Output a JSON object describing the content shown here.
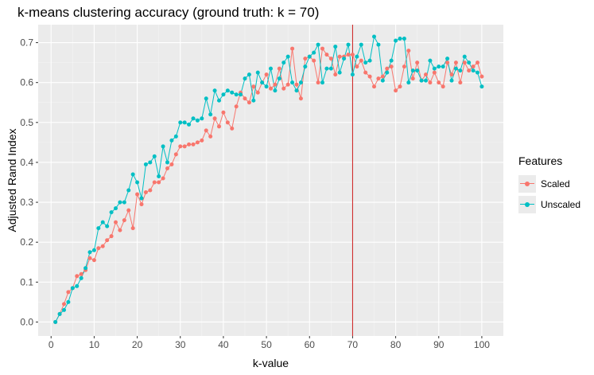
{
  "chart_data": {
    "type": "line",
    "title": "k-means clustering accuracy (ground truth: k = 70)",
    "xlabel": "k-value",
    "ylabel": "Adjusted Rand Index",
    "xlim": [
      -3,
      105
    ],
    "ylim": [
      -0.035,
      0.745
    ],
    "x_ticks": [
      0,
      10,
      20,
      30,
      40,
      50,
      60,
      70,
      80,
      90,
      100
    ],
    "y_ticks": [
      0.0,
      0.1,
      0.2,
      0.3,
      0.4,
      0.5,
      0.6,
      0.7
    ],
    "y_tick_labels": [
      "0.0",
      "0.1",
      "0.2",
      "0.3",
      "0.4",
      "0.5",
      "0.6",
      "0.7"
    ],
    "vline": {
      "x": 70,
      "color": "#cc1a1a"
    },
    "grid": true,
    "legend_title": "Features",
    "legend_position": "right",
    "x": [
      1,
      2,
      3,
      4,
      5,
      6,
      7,
      8,
      9,
      10,
      11,
      12,
      13,
      14,
      15,
      16,
      17,
      18,
      19,
      20,
      21,
      22,
      23,
      24,
      25,
      26,
      27,
      28,
      29,
      30,
      31,
      32,
      33,
      34,
      35,
      36,
      37,
      38,
      39,
      40,
      41,
      42,
      43,
      44,
      45,
      46,
      47,
      48,
      49,
      50,
      51,
      52,
      53,
      54,
      55,
      56,
      57,
      58,
      59,
      60,
      61,
      62,
      63,
      64,
      65,
      66,
      67,
      68,
      69,
      70,
      71,
      72,
      73,
      74,
      75,
      76,
      77,
      78,
      79,
      80,
      81,
      82,
      83,
      84,
      85,
      86,
      87,
      88,
      89,
      90,
      91,
      92,
      93,
      94,
      95,
      96,
      97,
      98,
      99,
      100
    ],
    "series": [
      {
        "name": "Scaled",
        "color": "#f8766d",
        "values": [
          0.0,
          0.02,
          0.045,
          0.075,
          0.085,
          0.115,
          0.12,
          0.13,
          0.16,
          0.155,
          0.185,
          0.19,
          0.205,
          0.215,
          0.25,
          0.23,
          0.255,
          0.28,
          0.235,
          0.32,
          0.295,
          0.325,
          0.33,
          0.35,
          0.35,
          0.36,
          0.385,
          0.395,
          0.42,
          0.44,
          0.44,
          0.445,
          0.445,
          0.45,
          0.455,
          0.48,
          0.465,
          0.51,
          0.49,
          0.525,
          0.5,
          0.485,
          0.54,
          0.575,
          0.56,
          0.55,
          0.59,
          0.575,
          0.6,
          0.62,
          0.585,
          0.595,
          0.635,
          0.585,
          0.595,
          0.685,
          0.595,
          0.56,
          0.66,
          0.665,
          0.655,
          0.6,
          0.685,
          0.67,
          0.66,
          0.62,
          0.665,
          0.665,
          0.67,
          0.67,
          0.64,
          0.655,
          0.625,
          0.615,
          0.59,
          0.61,
          0.615,
          0.635,
          0.64,
          0.58,
          0.59,
          0.64,
          0.68,
          0.61,
          0.65,
          0.605,
          0.62,
          0.6,
          0.625,
          0.6,
          0.59,
          0.65,
          0.62,
          0.65,
          0.6,
          0.65,
          0.63,
          0.64,
          0.65,
          0.615
        ]
      },
      {
        "name": "Unscaled",
        "color": "#00bfc4",
        "values": [
          0.0,
          0.02,
          0.03,
          0.05,
          0.085,
          0.09,
          0.11,
          0.135,
          0.175,
          0.18,
          0.235,
          0.25,
          0.24,
          0.275,
          0.285,
          0.3,
          0.3,
          0.33,
          0.37,
          0.35,
          0.31,
          0.395,
          0.4,
          0.415,
          0.365,
          0.44,
          0.4,
          0.455,
          0.465,
          0.5,
          0.5,
          0.495,
          0.51,
          0.505,
          0.51,
          0.56,
          0.52,
          0.58,
          0.555,
          0.57,
          0.58,
          0.575,
          0.57,
          0.57,
          0.61,
          0.62,
          0.555,
          0.625,
          0.6,
          0.59,
          0.635,
          0.58,
          0.61,
          0.65,
          0.665,
          0.6,
          0.58,
          0.6,
          0.64,
          0.665,
          0.675,
          0.695,
          0.6,
          0.635,
          0.635,
          0.69,
          0.625,
          0.66,
          0.695,
          0.62,
          0.665,
          0.695,
          0.65,
          0.655,
          0.715,
          0.695,
          0.605,
          0.625,
          0.655,
          0.705,
          0.71,
          0.71,
          0.6,
          0.63,
          0.63,
          0.605,
          0.605,
          0.655,
          0.635,
          0.64,
          0.64,
          0.66,
          0.605,
          0.635,
          0.63,
          0.665,
          0.65,
          0.63,
          0.625,
          0.59
        ]
      }
    ]
  }
}
